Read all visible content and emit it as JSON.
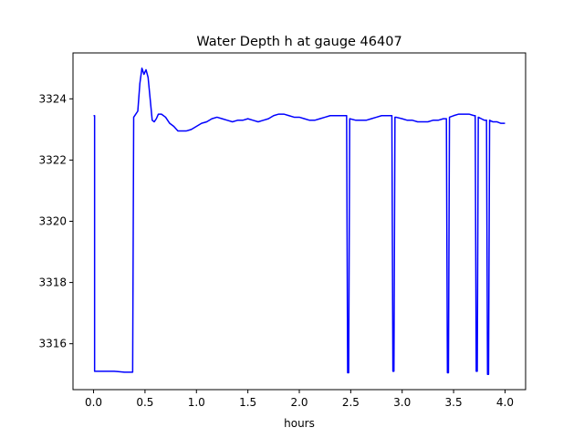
{
  "chart_data": {
    "type": "line",
    "title": "Water Depth h at gauge 46407",
    "xlabel": "hours",
    "ylabel": "",
    "xlim": [
      -0.2,
      4.2
    ],
    "ylim": [
      3314.5,
      3325.5
    ],
    "xticks": [
      0.0,
      0.5,
      1.0,
      1.5,
      2.0,
      2.5,
      3.0,
      3.5,
      4.0
    ],
    "xtick_labels": [
      "0.0",
      "0.5",
      "1.0",
      "1.5",
      "2.0",
      "2.5",
      "3.0",
      "3.5",
      "4.0"
    ],
    "yticks": [
      3316,
      3318,
      3320,
      3322,
      3324
    ],
    "ytick_labels": [
      "3316",
      "3318",
      "3320",
      "3322",
      "3324"
    ],
    "grid": false,
    "series": [
      {
        "color": "#0000ff",
        "x": [
          0.0,
          0.01,
          0.01,
          0.02,
          0.1,
          0.2,
          0.3,
          0.38,
          0.39,
          0.4,
          0.43,
          0.45,
          0.47,
          0.49,
          0.51,
          0.53,
          0.55,
          0.57,
          0.59,
          0.61,
          0.63,
          0.66,
          0.7,
          0.74,
          0.78,
          0.82,
          0.86,
          0.9,
          0.95,
          1.0,
          1.05,
          1.1,
          1.15,
          1.2,
          1.25,
          1.3,
          1.35,
          1.4,
          1.45,
          1.5,
          1.55,
          1.6,
          1.65,
          1.7,
          1.75,
          1.8,
          1.85,
          1.9,
          1.95,
          2.0,
          2.05,
          2.1,
          2.15,
          2.2,
          2.25,
          2.3,
          2.35,
          2.4,
          2.45,
          2.46,
          2.47,
          2.48,
          2.49,
          2.55,
          2.6,
          2.65,
          2.7,
          2.75,
          2.8,
          2.85,
          2.9,
          2.91,
          2.92,
          2.93,
          2.94,
          3.0,
          3.05,
          3.1,
          3.15,
          3.2,
          3.25,
          3.3,
          3.35,
          3.4,
          3.43,
          3.44,
          3.45,
          3.46,
          3.5,
          3.55,
          3.6,
          3.65,
          3.7,
          3.71,
          3.72,
          3.73,
          3.74,
          3.77,
          3.8,
          3.82,
          3.83,
          3.84,
          3.85,
          3.88,
          3.92,
          3.96,
          4.0
        ],
        "y": [
          3323.45,
          3323.45,
          3315.1,
          3315.1,
          3315.1,
          3315.1,
          3315.07,
          3315.07,
          3323.4,
          3323.45,
          3323.6,
          3324.5,
          3325.0,
          3324.8,
          3324.95,
          3324.7,
          3324.0,
          3323.3,
          3323.25,
          3323.35,
          3323.5,
          3323.5,
          3323.4,
          3323.2,
          3323.1,
          3322.95,
          3322.95,
          3322.95,
          3323.0,
          3323.1,
          3323.2,
          3323.25,
          3323.35,
          3323.4,
          3323.35,
          3323.3,
          3323.25,
          3323.3,
          3323.3,
          3323.35,
          3323.3,
          3323.25,
          3323.3,
          3323.35,
          3323.45,
          3323.5,
          3323.5,
          3323.45,
          3323.4,
          3323.4,
          3323.35,
          3323.3,
          3323.3,
          3323.35,
          3323.4,
          3323.45,
          3323.45,
          3323.45,
          3323.45,
          3323.45,
          3315.05,
          3315.05,
          3323.35,
          3323.3,
          3323.3,
          3323.3,
          3323.35,
          3323.4,
          3323.45,
          3323.45,
          3323.45,
          3315.1,
          3315.1,
          3323.4,
          3323.4,
          3323.35,
          3323.3,
          3323.3,
          3323.25,
          3323.25,
          3323.25,
          3323.3,
          3323.3,
          3323.35,
          3323.35,
          3315.05,
          3315.05,
          3323.4,
          3323.45,
          3323.5,
          3323.5,
          3323.5,
          3323.45,
          3323.45,
          3315.1,
          3315.1,
          3323.4,
          3323.35,
          3323.3,
          3323.3,
          3315.0,
          3315.0,
          3323.3,
          3323.25,
          3323.25,
          3323.2,
          3323.2
        ]
      }
    ]
  }
}
